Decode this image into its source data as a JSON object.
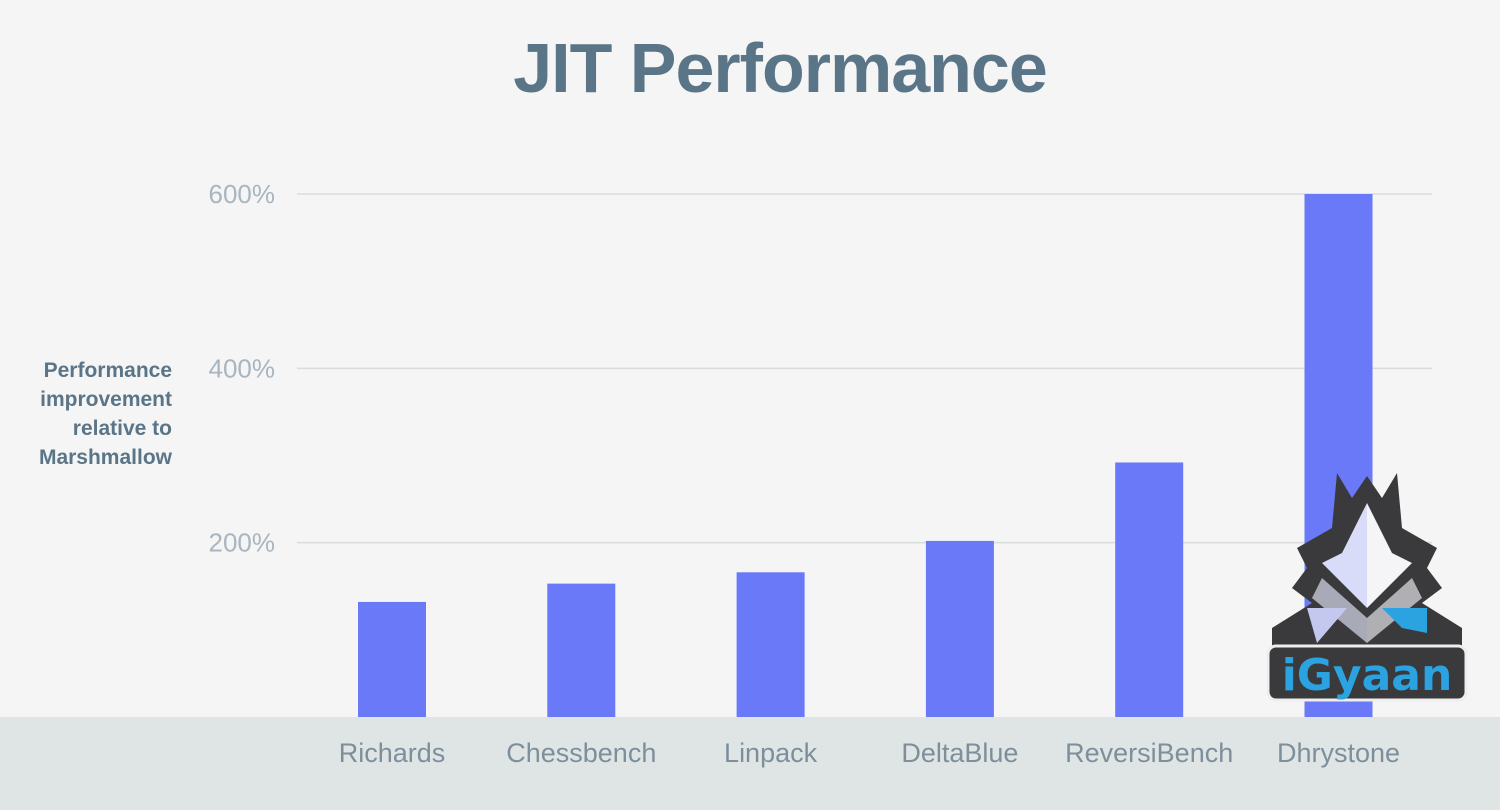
{
  "chart_data": {
    "type": "bar",
    "title": "JIT Performance",
    "ylabel": "Performance improvement relative to Marshmallow",
    "ylabel_lines": [
      "Performance",
      "improvement",
      "relative to",
      "Marshmallow"
    ],
    "xlabel": "",
    "categories": [
      "Richards",
      "Chessbench",
      "Linpack",
      "DeltaBlue",
      "ReversiBench",
      "Dhrystone"
    ],
    "values": [
      132,
      153,
      166,
      202,
      292,
      600
    ],
    "unit": "%",
    "ylim": [
      0,
      600
    ],
    "yticks": [
      200,
      400,
      600
    ],
    "ytick_labels": [
      "200%",
      "400%",
      "600%"
    ],
    "grid": true,
    "colors": {
      "bar": "#6979f8",
      "title": "#5b7588",
      "grid": "#d9dcdd"
    }
  },
  "watermark": {
    "text": "iGyaan"
  }
}
